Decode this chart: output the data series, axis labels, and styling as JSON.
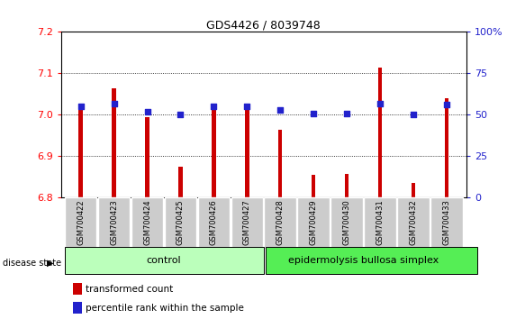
{
  "title": "GDS4426 / 8039748",
  "samples": [
    "GSM700422",
    "GSM700423",
    "GSM700424",
    "GSM700425",
    "GSM700426",
    "GSM700427",
    "GSM700428",
    "GSM700429",
    "GSM700430",
    "GSM700431",
    "GSM700432",
    "GSM700433"
  ],
  "transformed_count": [
    7.02,
    7.065,
    6.995,
    6.875,
    7.02,
    7.02,
    6.965,
    6.855,
    6.858,
    7.115,
    6.835,
    7.04
  ],
  "percentile_rank": [
    55,
    57,
    52,
    50,
    55,
    55,
    53,
    51,
    51,
    57,
    50,
    56
  ],
  "ylim_left": [
    6.8,
    7.2
  ],
  "ylim_right": [
    0,
    100
  ],
  "yticks_left": [
    6.8,
    6.9,
    7.0,
    7.1,
    7.2
  ],
  "yticks_right": [
    0,
    25,
    50,
    75,
    100
  ],
  "ytick_labels_right": [
    "0",
    "25",
    "50",
    "75",
    "100%"
  ],
  "bar_color": "#cc0000",
  "dot_color": "#2222cc",
  "control_samples": 6,
  "control_label": "control",
  "disease_label": "epidermolysis bullosa simplex",
  "disease_state_label": "disease state",
  "legend_bar": "transformed count",
  "legend_dot": "percentile rank within the sample",
  "control_bg": "#bbffbb",
  "disease_bg": "#55ee55",
  "xticklabel_bg": "#cccccc",
  "baseline": 6.8,
  "bar_width": 0.12
}
